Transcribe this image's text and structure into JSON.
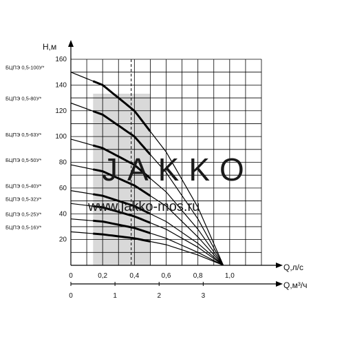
{
  "chart_data": {
    "type": "line",
    "ylabel": "H,м",
    "xlabel": "Q,л/с",
    "x2label": "Q,м³/ч",
    "xlim": [
      0,
      1.2
    ],
    "ylim": [
      0,
      160
    ],
    "x2lim": [
      0,
      4.32
    ],
    "x_ticks": [
      "0",
      "0,2",
      "0,4",
      "0,6",
      "0,8",
      "1,0"
    ],
    "x_tick_values": [
      0,
      0.2,
      0.4,
      0.6,
      0.8,
      1.0
    ],
    "x2_ticks": [
      "0",
      "1",
      "2",
      "3"
    ],
    "x2_tick_values": [
      0,
      1,
      2,
      3
    ],
    "y_ticks": [
      "20",
      "40",
      "60",
      "80",
      "100",
      "120",
      "140",
      "160"
    ],
    "y_tick_values": [
      20,
      40,
      60,
      80,
      100,
      120,
      140,
      160
    ],
    "grid": true,
    "working_range": [
      0.14,
      0.5
    ],
    "dashed_x": 0.38,
    "series": [
      {
        "name": "БЦПЭ 0,5-100У*",
        "x": [
          0,
          0.2,
          0.4,
          0.6,
          0.8,
          0.96
        ],
        "y": [
          150,
          140,
          120,
          88,
          45,
          0
        ]
      },
      {
        "name": "БЦПЭ 0,5-80У*",
        "x": [
          0,
          0.2,
          0.4,
          0.6,
          0.8,
          0.96
        ],
        "y": [
          126,
          117,
          100,
          72,
          36,
          0
        ]
      },
      {
        "name": "БЦПЭ 0,5-63У*",
        "x": [
          0,
          0.2,
          0.4,
          0.6,
          0.8,
          0.96
        ],
        "y": [
          98,
          91,
          78,
          57,
          28,
          0
        ]
      },
      {
        "name": "БЦПЭ 0,5-50У*",
        "x": [
          0,
          0.2,
          0.4,
          0.6,
          0.8,
          0.96
        ],
        "y": [
          78,
          73,
          62,
          46,
          22,
          0
        ]
      },
      {
        "name": "БЦПЭ 0,5-40У*",
        "x": [
          0,
          0.2,
          0.4,
          0.6,
          0.8,
          0.96
        ],
        "y": [
          58,
          54,
          46,
          34,
          17,
          0
        ]
      },
      {
        "name": "БЦПЭ 0,5-32У*",
        "x": [
          0,
          0.2,
          0.4,
          0.6,
          0.8,
          0.96
        ],
        "y": [
          48,
          45,
          38,
          28,
          14,
          0
        ]
      },
      {
        "name": "БЦПЭ 0,5-25У*",
        "x": [
          0,
          0.2,
          0.4,
          0.6,
          0.8,
          0.96
        ],
        "y": [
          36,
          34,
          29,
          21,
          10,
          0
        ]
      },
      {
        "name": "БЦПЭ 0,5-16У*",
        "x": [
          0,
          0.2,
          0.4,
          0.6,
          0.8,
          0.96
        ],
        "y": [
          26,
          24,
          21,
          16,
          8,
          0
        ]
      }
    ]
  },
  "watermark": {
    "brand": "JAKKO",
    "url": "www.jakko-mos.ru"
  },
  "colors": {
    "shade": "#d9d9d9",
    "line": "#000000",
    "grid": "#000000"
  }
}
